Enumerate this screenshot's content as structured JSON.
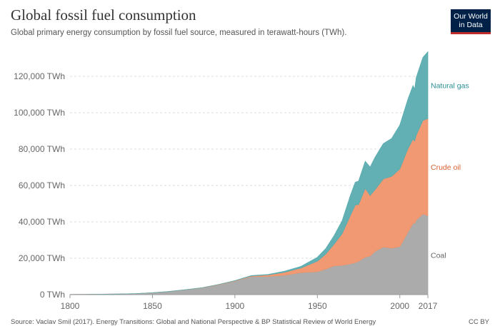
{
  "header": {
    "title": "Global fossil fuel consumption",
    "subtitle": "Global primary energy consumption by fossil fuel source, measured in terawatt-hours (TWh)."
  },
  "logo": {
    "line1": "Our World",
    "line2": "in Data",
    "colors": {
      "background": "#002147",
      "accent": "#be2c2c"
    }
  },
  "footer": {
    "source": "Source: Vaclav Smil (2017). Energy Transitions: Global and National Perspective & BP Statistical Review of World Energy",
    "license": "CC BY"
  },
  "chart_data": {
    "type": "area",
    "stacked": true,
    "title": "Global fossil fuel consumption",
    "subtitle": "Global primary energy consumption by fossil fuel source, measured in terawatt-hours (TWh).",
    "x": [
      1800,
      1810,
      1820,
      1830,
      1840,
      1850,
      1860,
      1870,
      1880,
      1890,
      1900,
      1910,
      1920,
      1930,
      1940,
      1950,
      1955,
      1960,
      1965,
      1970,
      1973,
      1975,
      1979,
      1982,
      1985,
      1990,
      1995,
      2000,
      2005,
      2008,
      2009,
      2010,
      2014,
      2017
    ],
    "x_ticks": [
      1800,
      1850,
      1900,
      1950,
      2000,
      2017
    ],
    "x_tick_labels": [
      "1800",
      "1850",
      "1900",
      "1950",
      "2000",
      "2017"
    ],
    "xlim": [
      1800,
      2017
    ],
    "y_ticks": [
      0,
      20000,
      40000,
      60000,
      80000,
      100000,
      120000
    ],
    "y_tick_labels": [
      "0 TWh",
      "20,000 TWh",
      "40,000 TWh",
      "60,000 TWh",
      "80,000 TWh",
      "100,000 TWh",
      "120,000 TWh"
    ],
    "ylim": [
      0,
      130000
    ],
    "grid": true,
    "series": [
      {
        "name": "Coal",
        "color": "#a6a6a6",
        "values": [
          97,
          147,
          216,
          356,
          530,
          1023,
          1679,
          2702,
          3723,
          5422,
          7457,
          9911,
          10002,
          10617,
          12100,
          12603,
          14000,
          15800,
          16100,
          16900,
          17600,
          18300,
          20600,
          21200,
          23800,
          26200,
          25500,
          26400,
          34500,
          39200,
          39300,
          41000,
          44300,
          43400
        ]
      },
      {
        "name": "Crude oil",
        "color": "#f0946a",
        "values": [
          0,
          0,
          0,
          0,
          0,
          0,
          0,
          5,
          30,
          96,
          181,
          380,
          811,
          1640,
          2530,
          5800,
          8200,
          11800,
          17300,
          26600,
          31700,
          31200,
          37800,
          33300,
          33900,
          37400,
          39500,
          42700,
          45900,
          46300,
          45200,
          46700,
          51500,
          53400
        ]
      },
      {
        "name": "Natural gas",
        "color": "#5aacaf",
        "values": [
          0,
          0,
          0,
          0,
          0,
          0,
          0,
          0,
          0,
          30,
          64,
          160,
          240,
          550,
          850,
          2100,
          3000,
          4600,
          7100,
          11000,
          12500,
          12900,
          14900,
          15600,
          17800,
          19400,
          20800,
          24100,
          27300,
          29400,
          28400,
          31700,
          34600,
          36700
        ]
      }
    ]
  }
}
